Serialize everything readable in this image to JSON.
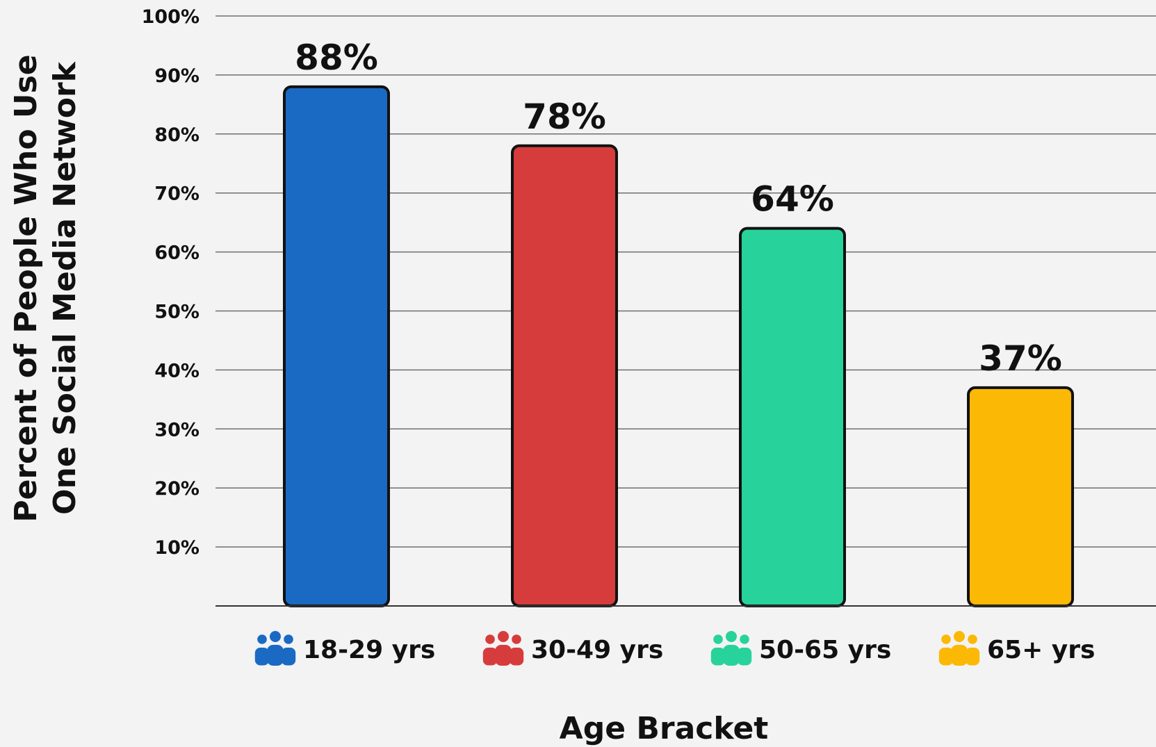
{
  "chart_data": {
    "type": "bar",
    "categories": [
      "18-29 yrs",
      "30-49 yrs",
      "50-65 yrs",
      "65+ yrs"
    ],
    "values": [
      88,
      78,
      64,
      37
    ],
    "value_labels": [
      "88%",
      "78%",
      "64%",
      "37%"
    ],
    "colors": [
      "#1a6ac4",
      "#d63c3c",
      "#27d39a",
      "#fbb805"
    ],
    "category_icons": [
      "people-group-icon",
      "people-group-icon",
      "people-group-icon",
      "people-group-icon"
    ],
    "xlabel": "Age Bracket",
    "ylabel_lines": [
      "Percent of People Who Use",
      "One Social Media Network"
    ],
    "ylim": [
      0,
      100
    ],
    "yticks": [
      10,
      20,
      30,
      40,
      50,
      60,
      70,
      80,
      90,
      100
    ],
    "ytick_labels": [
      "10%",
      "20%",
      "30%",
      "40%",
      "50%",
      "60%",
      "70%",
      "80%",
      "90%",
      "100%"
    ],
    "grid": true,
    "legend": "none"
  }
}
